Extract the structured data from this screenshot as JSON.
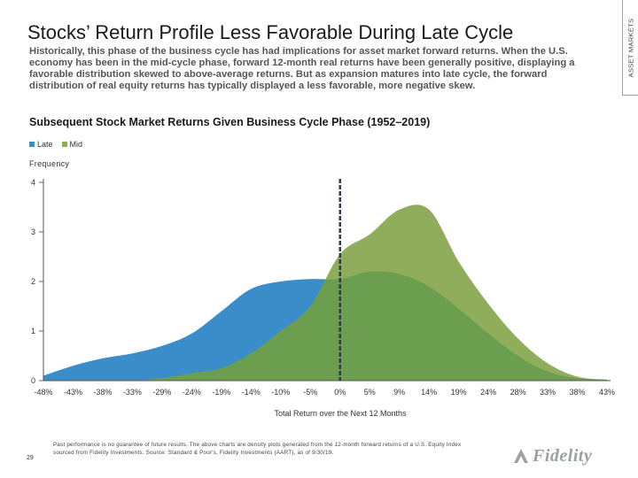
{
  "header": {
    "title": "Stocks’ Return Profile Less Favorable During Late Cycle",
    "side_label": "ASSET MARKETS",
    "intro": "Historically, this phase of the business cycle has had implications for asset market forward returns. When the U.S. economy has been in the mid-cycle phase, forward 12-month real returns have been generally positive, displaying a favorable distribution skewed to above-average returns. But as expansion matures into late cycle, the forward distribution of real equity returns has typically displayed a less favorable, more negative skew."
  },
  "chart_data": {
    "type": "area",
    "title": "Subsequent Stock Market Returns Given Business Cycle Phase (1952–2019)",
    "ylabel": "Frequency",
    "xlabel": "Total Return over the Next 12 Months",
    "ylim": [
      0,
      4
    ],
    "yticks": [
      "0",
      "1",
      "2",
      "3",
      "4"
    ],
    "categories": [
      "-48%",
      "-43%",
      "-38%",
      "-33%",
      "-29%",
      "-24%",
      "-19%",
      "-14%",
      "-10%",
      "-5%",
      "0%",
      "5%",
      "9%",
      "14%",
      "19%",
      "24%",
      "28%",
      "33%",
      "38%",
      "43%"
    ],
    "marker_line_category": "0%",
    "series": [
      {
        "name": "Late",
        "color": "#3a8dc8",
        "values": [
          0.1,
          0.3,
          0.45,
          0.55,
          0.7,
          0.95,
          1.4,
          1.85,
          2.0,
          2.05,
          2.05,
          2.2,
          2.15,
          1.9,
          1.45,
          0.95,
          0.5,
          0.18,
          0.05,
          0.02
        ]
      },
      {
        "name": "Mid",
        "color": "#8fad5a",
        "values": [
          0.0,
          0.0,
          0.0,
          0.0,
          0.05,
          0.15,
          0.25,
          0.55,
          1.0,
          1.5,
          2.55,
          2.95,
          3.45,
          3.45,
          2.4,
          1.55,
          0.85,
          0.35,
          0.08,
          0.02
        ]
      }
    ],
    "overlap_color": "#6b9e4e"
  },
  "footer": {
    "page_number": "29",
    "disclaimer": "Past performance is no guarantee of future results. The above charts are density plots generated from the 12-month forward returns of a U.S. Equity Index sourced from Fidelity Investments. Source: Standard & Poor's, Fidelity Investments (AART), as of 9/30/19.",
    "logo_text": "Fidelity"
  }
}
